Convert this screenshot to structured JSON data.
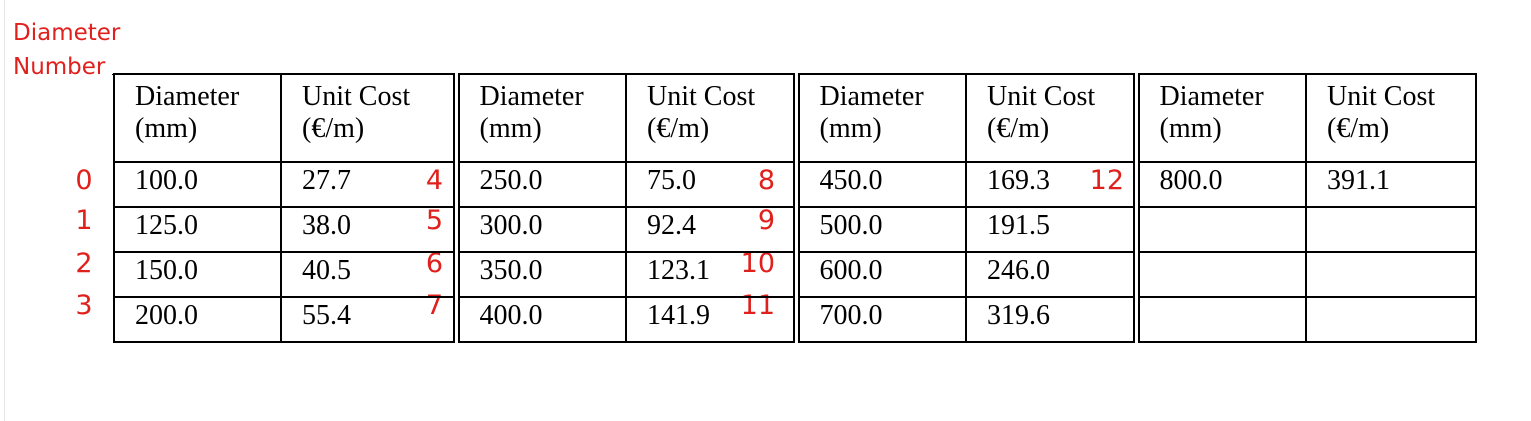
{
  "annotation": {
    "header": [
      "Diameter",
      "Number"
    ],
    "row_numbers": [
      "0",
      "1",
      "2",
      "3"
    ],
    "group_numbers": [
      [
        "4",
        "5",
        "6",
        "7"
      ],
      [
        "8",
        "9",
        "10",
        "11"
      ],
      [
        "12",
        "",
        "",
        ""
      ]
    ],
    "color": "#e0201c"
  },
  "table": {
    "columns": [
      {
        "line1": "Diameter",
        "line2": "(mm)"
      },
      {
        "line1": "Unit Cost",
        "line2": "(€/m)"
      },
      {
        "line1": "Diameter",
        "line2": "(mm)"
      },
      {
        "line1": "Unit Cost",
        "line2": "(€/m)"
      },
      {
        "line1": "Diameter",
        "line2": "(mm)"
      },
      {
        "line1": "Unit Cost",
        "line2": "(€/m)"
      },
      {
        "line1": "Diameter",
        "line2": "(mm)"
      },
      {
        "line1": "Unit Cost",
        "line2": "(€/m)"
      }
    ],
    "rows": [
      [
        "100.0",
        "27.7",
        "250.0",
        "75.0",
        "450.0",
        "169.3",
        "800.0",
        "391.1"
      ],
      [
        "125.0",
        "38.0",
        "300.0",
        "92.4",
        "500.0",
        "191.5",
        "",
        ""
      ],
      [
        "150.0",
        "40.5",
        "350.0",
        "123.1",
        "600.0",
        "246.0",
        "",
        ""
      ],
      [
        "200.0",
        "55.4",
        "400.0",
        "141.9",
        "700.0",
        "319.6",
        "",
        ""
      ]
    ]
  }
}
